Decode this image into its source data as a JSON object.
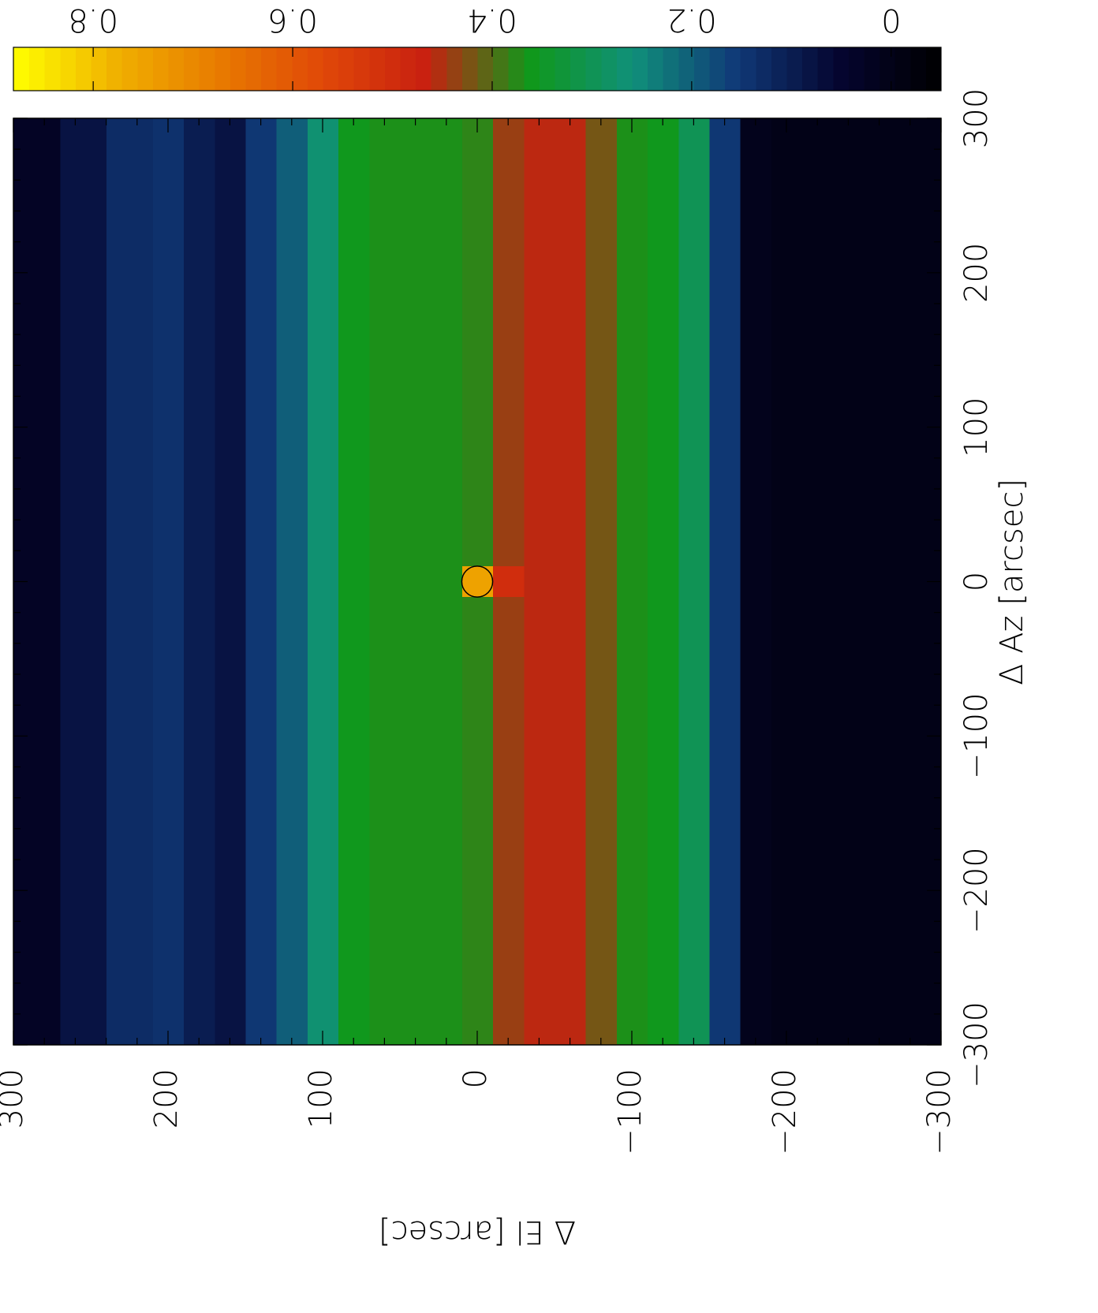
{
  "chart_data": {
    "type": "heatmap",
    "x_label": "Δ Az [arcsec]",
    "y_label": "Δ El [arcsec]",
    "xlim": [
      -300,
      300
    ],
    "ylim": [
      -300,
      300
    ],
    "xticks": [
      {
        "value": -300,
        "label": "−300"
      },
      {
        "value": -200,
        "label": "−200"
      },
      {
        "value": -100,
        "label": "−100"
      },
      0,
      100,
      200,
      300
    ],
    "yticks": [
      {
        "value": -300,
        "label": "−300"
      },
      {
        "value": -200,
        "label": "−200"
      },
      {
        "value": -100,
        "label": "−100"
      },
      0,
      100,
      200,
      300
    ],
    "x_edges": [
      -300,
      -10,
      10,
      300
    ],
    "y_edges": [
      -300,
      -270,
      -240,
      -210,
      -190,
      -170,
      -150,
      -130,
      -110,
      -90,
      -70,
      -50,
      -30,
      -10,
      10,
      30,
      50,
      70,
      90,
      110,
      130,
      150,
      170,
      190,
      210,
      240,
      270,
      300
    ],
    "z": [
      [
        0.0,
        0.0,
        0.0
      ],
      [
        0.0,
        0.0,
        0.0
      ],
      [
        0.0,
        0.0,
        0.0
      ],
      [
        0.0,
        0.0,
        0.0
      ],
      [
        0.01,
        0.01,
        0.01
      ],
      [
        0.15,
        0.15,
        0.15
      ],
      [
        0.3,
        0.3,
        0.3
      ],
      [
        0.36,
        0.36,
        0.36
      ],
      [
        0.37,
        0.37,
        0.37
      ],
      [
        0.42,
        0.42,
        0.42
      ],
      [
        0.46,
        0.46,
        0.46
      ],
      [
        0.46,
        0.46,
        0.46
      ],
      [
        0.44,
        0.5,
        0.44
      ],
      [
        0.38,
        0.75,
        0.38
      ],
      [
        0.37,
        0.37,
        0.37
      ],
      [
        0.37,
        0.37,
        0.37
      ],
      [
        0.37,
        0.37,
        0.37
      ],
      [
        0.36,
        0.36,
        0.36
      ],
      [
        0.27,
        0.27,
        0.27
      ],
      [
        0.2,
        0.2,
        0.2
      ],
      [
        0.15,
        0.15,
        0.15
      ],
      [
        0.08,
        0.08,
        0.08
      ],
      [
        0.1,
        0.1,
        0.1
      ],
      [
        0.14,
        0.14,
        0.14
      ],
      [
        0.13,
        0.13,
        0.13
      ],
      [
        0.08,
        0.08,
        0.08
      ],
      [
        0.03,
        0.03,
        0.03
      ]
    ],
    "clim": [
      -0.05,
      0.88
    ],
    "cticks": [
      0,
      0.2,
      0.4,
      0.6,
      0.8
    ],
    "colormap": [
      "#000000",
      "#050530",
      "#103a78",
      "#10907a",
      "#10981a",
      "#c82010",
      "#e04808",
      "#e87a00",
      "#f0b000",
      "#ffff00"
    ],
    "marker": {
      "x": 0,
      "y": 0,
      "radius": 10
    }
  }
}
